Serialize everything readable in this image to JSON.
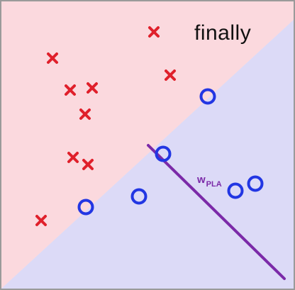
{
  "caption": "finally",
  "hypothesis": {
    "label_main": "w",
    "label_sub": "PLA",
    "color": "#7b2aa8"
  },
  "regions": {
    "positive_color": "#fbd9de",
    "negative_color": "#dcdaf7"
  },
  "points": {
    "cross_color": "#e0202b",
    "circle_color": "#2236e3",
    "crosses": [
      {
        "id": "x1"
      },
      {
        "id": "x2"
      },
      {
        "id": "x3"
      },
      {
        "id": "x4"
      },
      {
        "id": "x5"
      },
      {
        "id": "x6"
      },
      {
        "id": "x7"
      },
      {
        "id": "x8"
      },
      {
        "id": "x9"
      },
      {
        "id": "x10"
      }
    ],
    "circles": [
      {
        "id": "o1"
      },
      {
        "id": "o2"
      },
      {
        "id": "o3"
      },
      {
        "id": "o4"
      },
      {
        "id": "o5"
      },
      {
        "id": "o6"
      }
    ]
  }
}
